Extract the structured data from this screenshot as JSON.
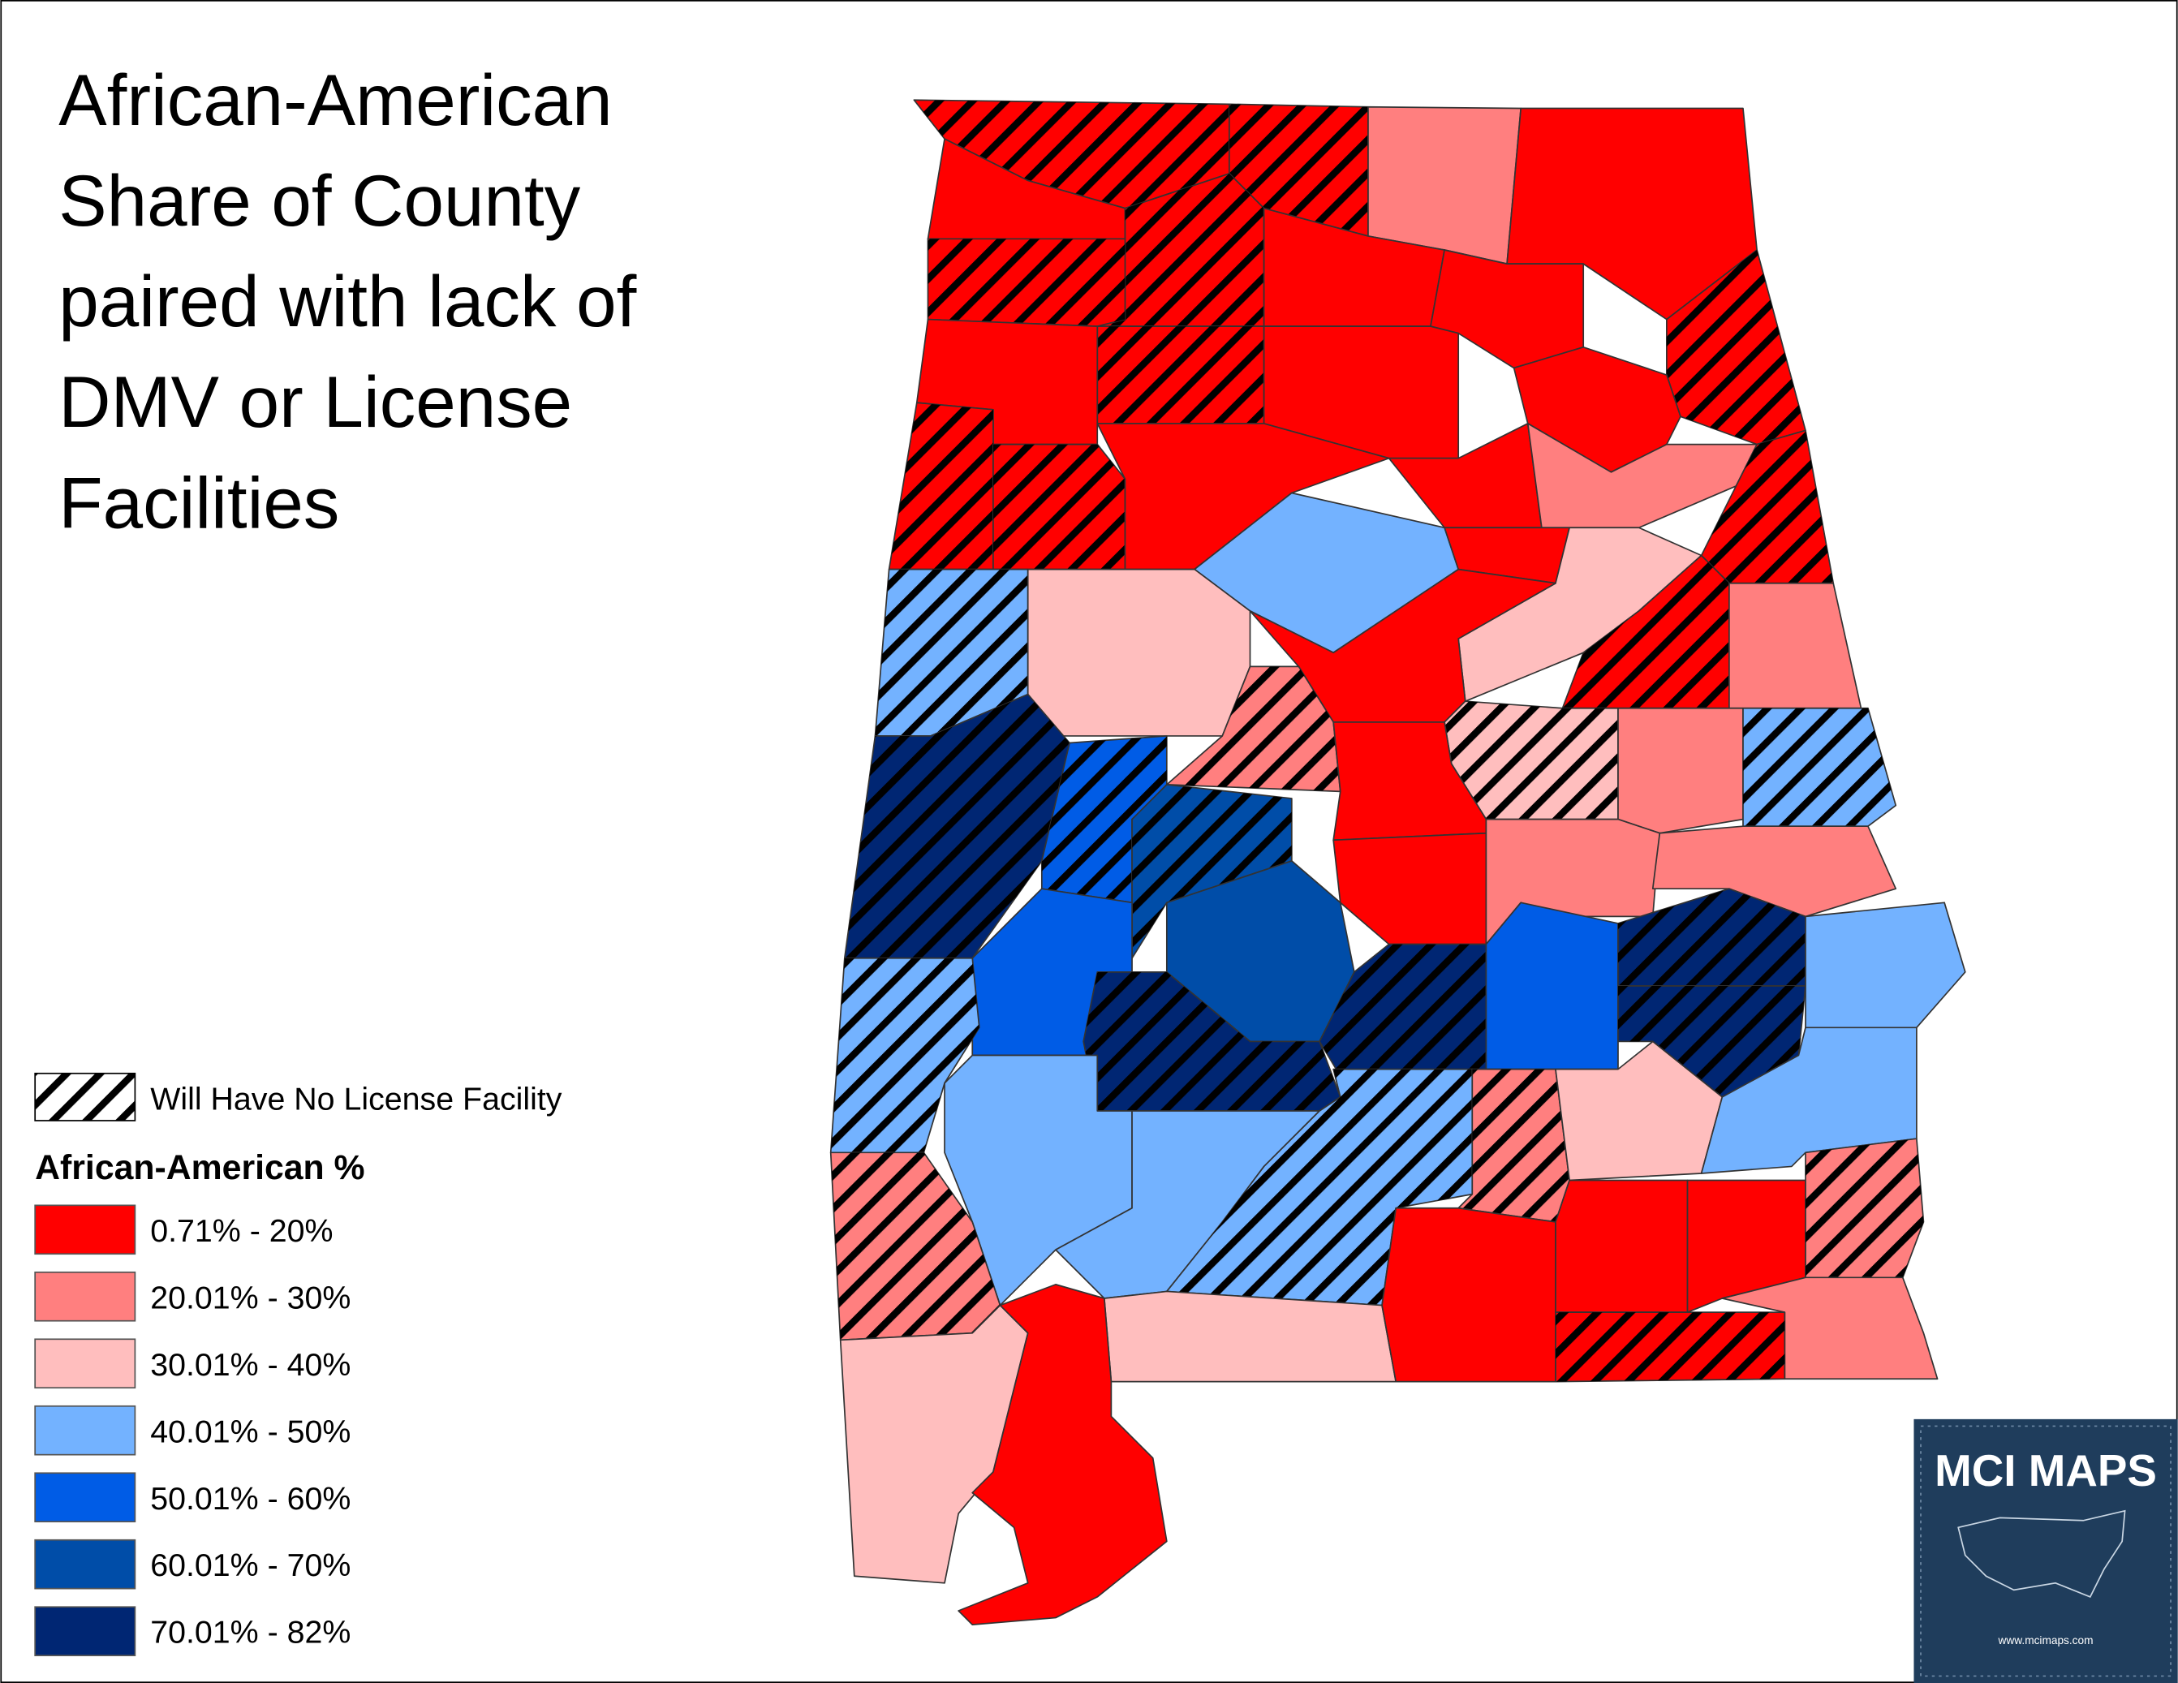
{
  "title_lines": [
    "African-American",
    "Share of County",
    "paired with lack of",
    "DMV or License",
    "Facilities"
  ],
  "legend": {
    "hatch_label": "Will Have No License Facility",
    "title": "African-American %",
    "classes": [
      {
        "label": "0.71% - 20%",
        "color": "#ff0000"
      },
      {
        "label": "20.01% - 30%",
        "color": "#ff7f7f"
      },
      {
        "label": "30.01% - 40%",
        "color": "#ffbebe"
      },
      {
        "label": "40.01% - 50%",
        "color": "#73b2ff"
      },
      {
        "label": "50.01% - 60%",
        "color": "#005ce6"
      },
      {
        "label": "60.01% - 70%",
        "color": "#004da8"
      },
      {
        "label": "70.01% - 82%",
        "color": "#002673"
      }
    ]
  },
  "logo": {
    "name": "MCI MAPS",
    "url": "www.mcimaps.com"
  }
}
